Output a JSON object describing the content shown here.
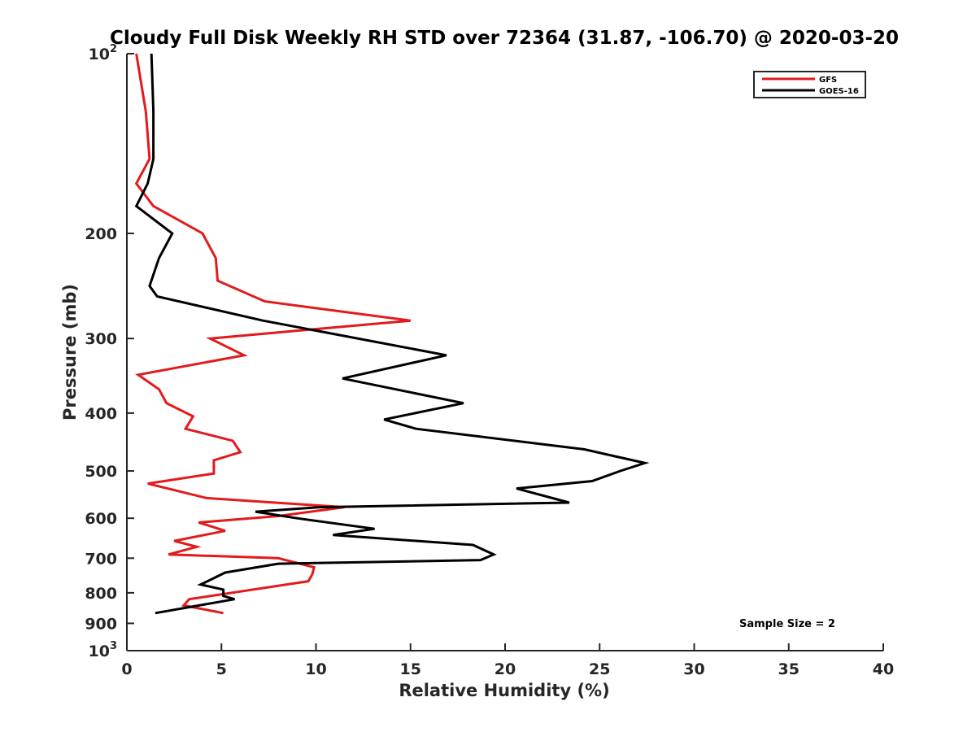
{
  "chart_data": {
    "type": "line",
    "title": "Cloudy Full Disk Weekly RH STD over 72364 (31.87, -106.70) @ 2020-03-20",
    "xlabel": "Relative Humidity (%)",
    "ylabel": "Pressure (mb)",
    "xlim": [
      0,
      40
    ],
    "ylim": [
      100,
      1000
    ],
    "y_scale": "log",
    "y_reversed": true,
    "x_ticks": [
      0,
      5,
      10,
      15,
      20,
      25,
      30,
      35,
      40
    ],
    "y_ticks": [
      {
        "value": 100,
        "base": "10",
        "exp": "2"
      },
      {
        "value": 200,
        "label": "200"
      },
      {
        "value": 300,
        "label": "300"
      },
      {
        "value": 400,
        "label": "400"
      },
      {
        "value": 500,
        "label": "500"
      },
      {
        "value": 600,
        "label": "600"
      },
      {
        "value": 700,
        "label": "700"
      },
      {
        "value": 800,
        "label": "800"
      },
      {
        "value": 900,
        "label": "900"
      },
      {
        "value": 1000,
        "base": "10",
        "exp": "3"
      }
    ],
    "grid": false,
    "legend_position": "top-right",
    "series": [
      {
        "name": "GFS",
        "color": "#e31a1c",
        "points": [
          [
            0.5,
            100
          ],
          [
            1.0,
            125
          ],
          [
            1.2,
            150
          ],
          [
            0.5,
            165
          ],
          [
            1.4,
            180
          ],
          [
            4.0,
            200
          ],
          [
            4.7,
            220
          ],
          [
            4.8,
            240
          ],
          [
            7.3,
            260
          ],
          [
            15.0,
            280
          ],
          [
            4.4,
            300
          ],
          [
            6.2,
            320
          ],
          [
            0.6,
            345
          ],
          [
            1.7,
            365
          ],
          [
            2.1,
            385
          ],
          [
            3.5,
            405
          ],
          [
            3.1,
            425
          ],
          [
            5.6,
            445
          ],
          [
            6.0,
            465
          ],
          [
            4.6,
            480
          ],
          [
            4.6,
            505
          ],
          [
            1.1,
            525
          ],
          [
            4.2,
            555
          ],
          [
            11.5,
            575
          ],
          [
            8.0,
            595
          ],
          [
            3.8,
            610
          ],
          [
            5.2,
            630
          ],
          [
            2.5,
            655
          ],
          [
            3.7,
            670
          ],
          [
            2.2,
            690
          ],
          [
            8.0,
            700
          ],
          [
            9.9,
            725
          ],
          [
            9.8,
            745
          ],
          [
            9.6,
            765
          ],
          [
            3.3,
            820
          ],
          [
            3.0,
            840
          ],
          [
            5.1,
            865
          ]
        ]
      },
      {
        "name": "GOES-16",
        "color": "#000000",
        "points": [
          [
            1.3,
            100
          ],
          [
            1.4,
            125
          ],
          [
            1.4,
            150
          ],
          [
            1.1,
            165
          ],
          [
            0.5,
            180
          ],
          [
            2.4,
            200
          ],
          [
            1.7,
            220
          ],
          [
            1.2,
            245
          ],
          [
            1.6,
            255
          ],
          [
            7.2,
            280
          ],
          [
            16.9,
            320
          ],
          [
            11.4,
            350
          ],
          [
            17.8,
            385
          ],
          [
            13.6,
            410
          ],
          [
            15.3,
            425
          ],
          [
            24.2,
            460
          ],
          [
            27.4,
            485
          ],
          [
            26.1,
            500
          ],
          [
            24.6,
            520
          ],
          [
            20.6,
            535
          ],
          [
            23.4,
            565
          ],
          [
            10.2,
            575
          ],
          [
            6.8,
            585
          ],
          [
            9.0,
            600
          ],
          [
            13.1,
            625
          ],
          [
            10.9,
            640
          ],
          [
            18.3,
            665
          ],
          [
            19.4,
            690
          ],
          [
            18.7,
            705
          ],
          [
            8.0,
            715
          ],
          [
            5.2,
            740
          ],
          [
            3.9,
            775
          ],
          [
            5.1,
            790
          ],
          [
            5.1,
            810
          ],
          [
            5.7,
            820
          ],
          [
            1.5,
            865
          ]
        ]
      }
    ],
    "annotations": [
      {
        "text": "Sample Size = 2"
      }
    ]
  }
}
